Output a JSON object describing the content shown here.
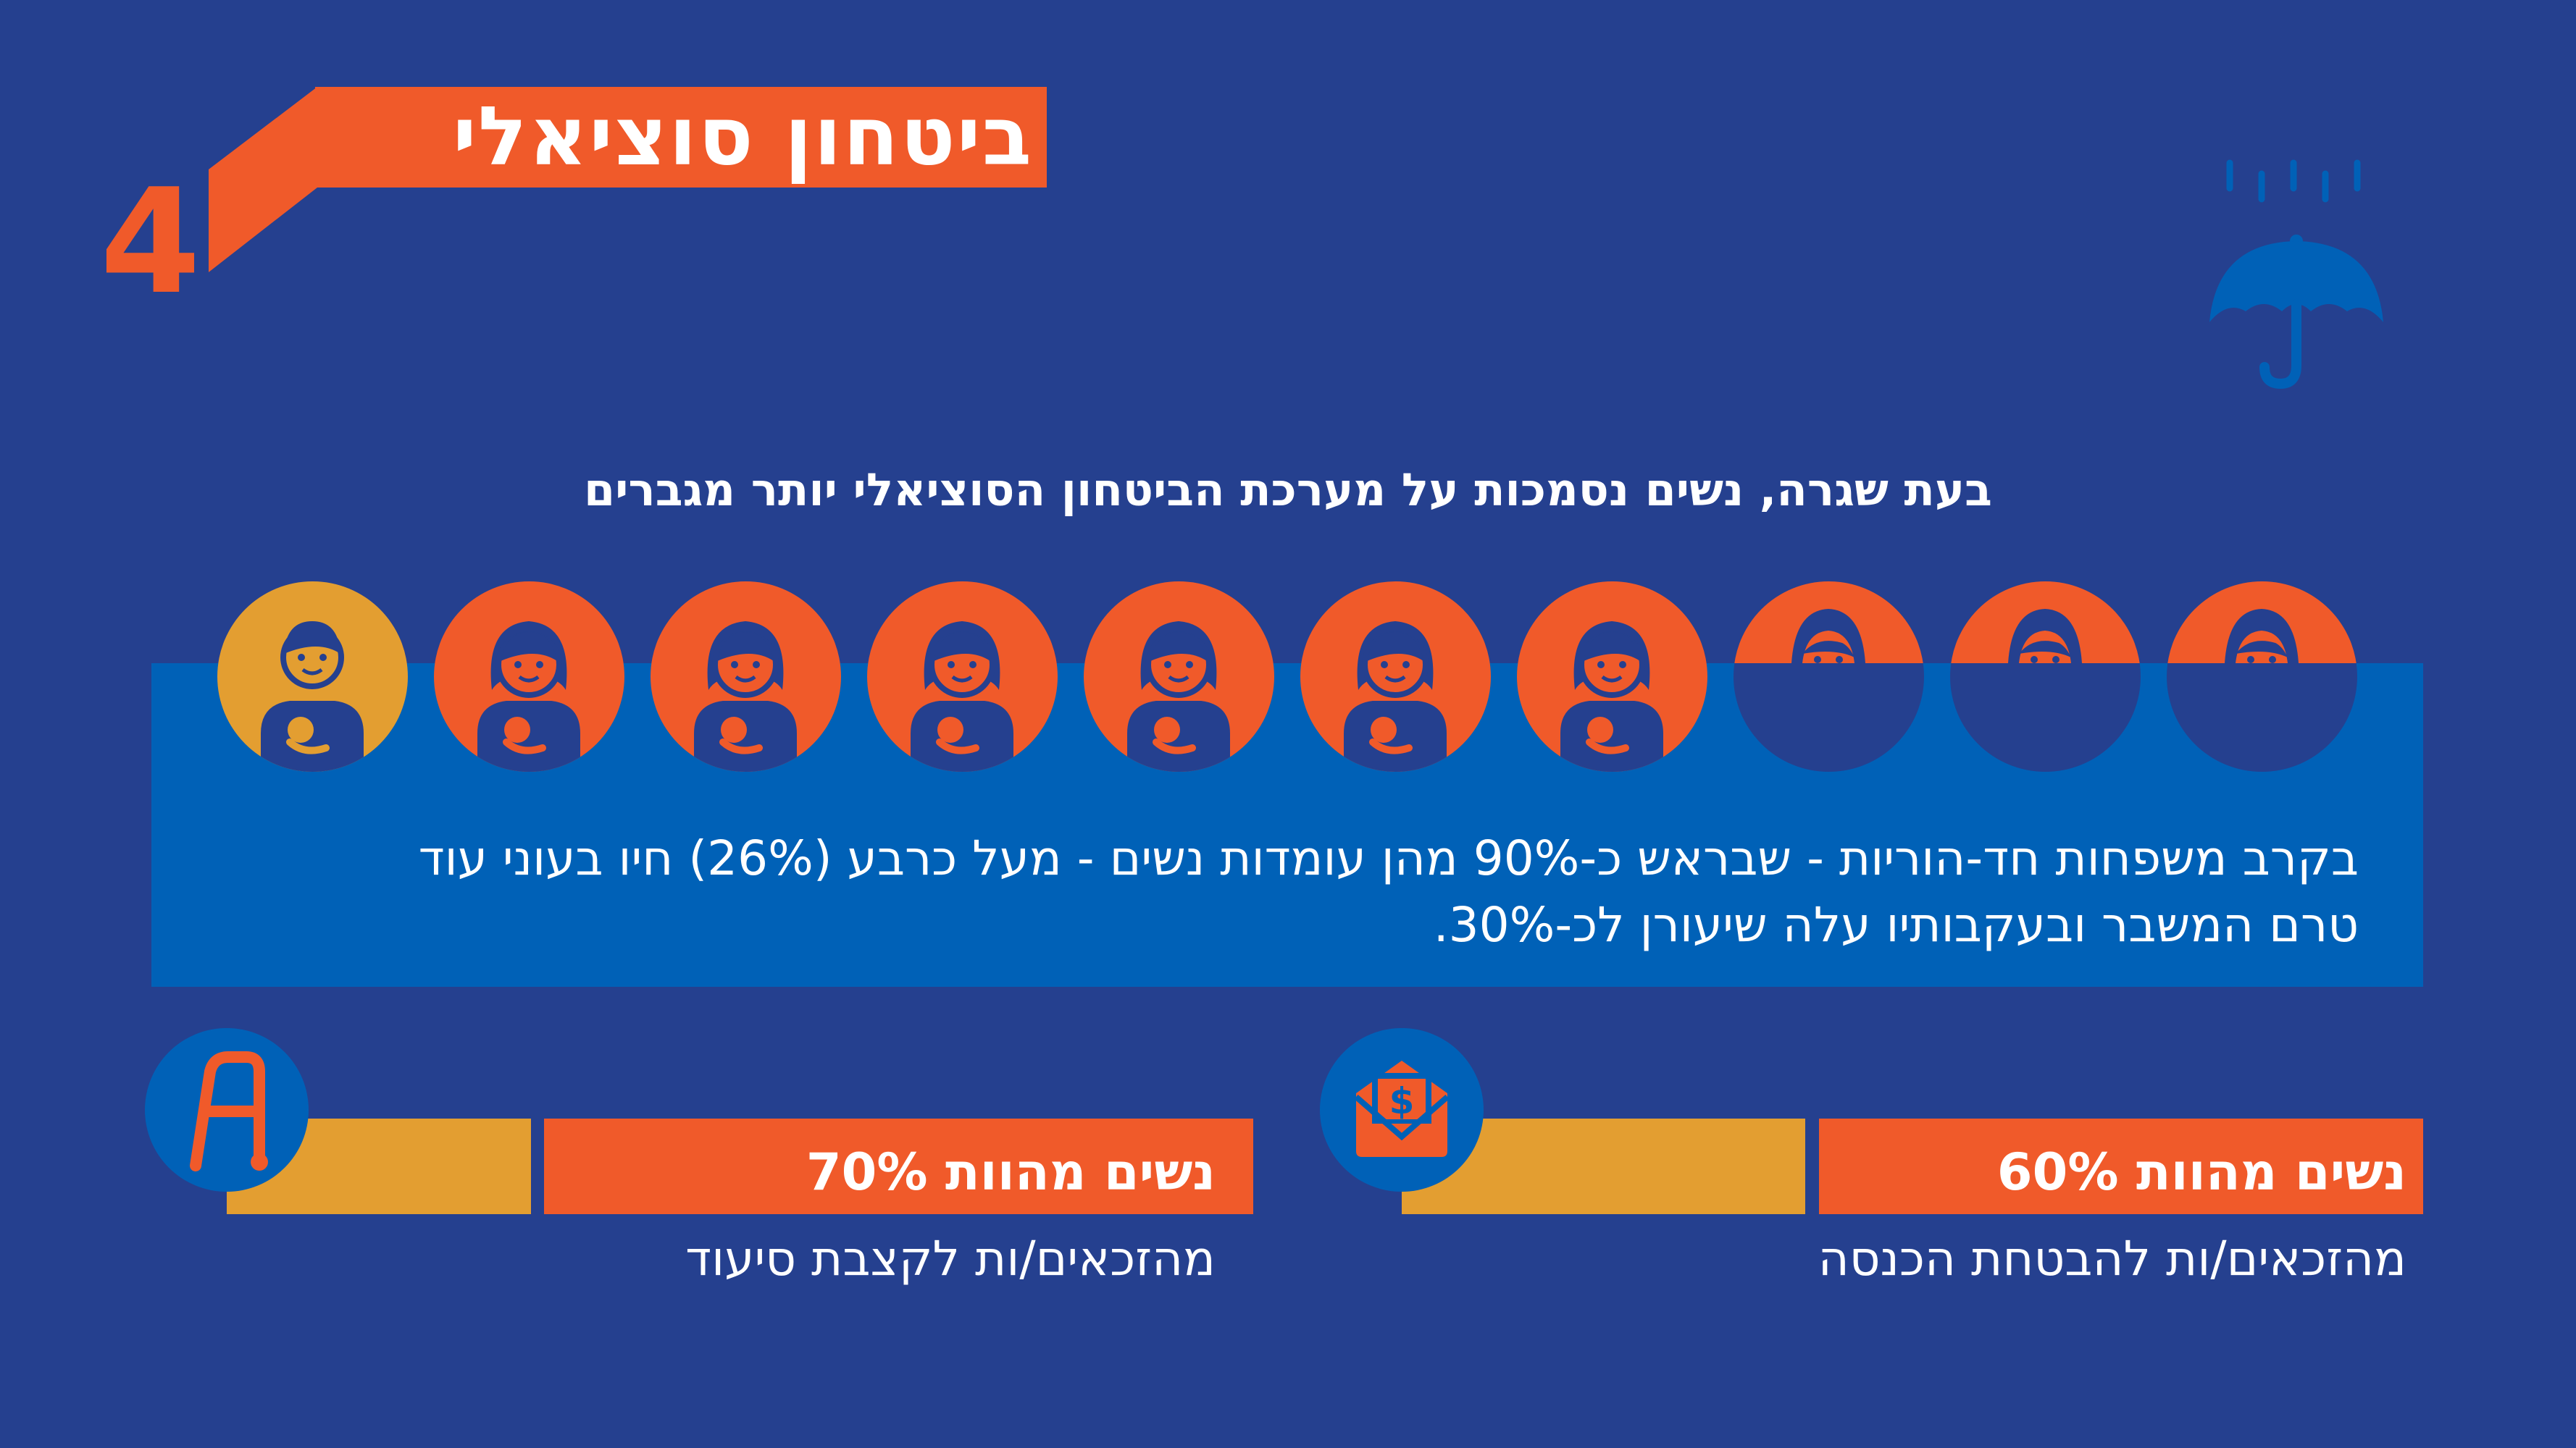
{
  "header": {
    "section_number": "4",
    "title": "ביטחון סוציאלי"
  },
  "subtitle": "בעת שגרה, נשים נסמכות על מערכת הביטחון הסוציאלי יותר מגברים",
  "icon_row": {
    "total": 10,
    "man_count": 1,
    "women_full_count": 6,
    "women_partial_count": 3,
    "colors": {
      "man": "#e39e31",
      "woman": "#f05a2a",
      "partial_bottom": "#25408f"
    }
  },
  "paragraph": {
    "line1": "בקרב משפחות חד-הוריות - שבראש כ-90% מהן עומדות נשים - מעל כרבע (26%) חיו בעוני עוד",
    "line2": "טרם המשבר ובעקבותיו עלה שיעורן לכ-30%."
  },
  "stats": [
    {
      "headline": "נשים מהוות 70%",
      "caption": "מהזכאים/ות לקצבת סיעוד",
      "percent": 70,
      "icon": "walker-icon"
    },
    {
      "headline": "נשים מהוות 60%",
      "caption": "מהזכאים/ות להבטחת הכנסה",
      "percent": 60,
      "icon": "money-envelope-icon"
    }
  ],
  "colors": {
    "background": "#25408f",
    "accent": "#f05a2a",
    "secondary": "#e39e31",
    "band": "#0061b7"
  }
}
